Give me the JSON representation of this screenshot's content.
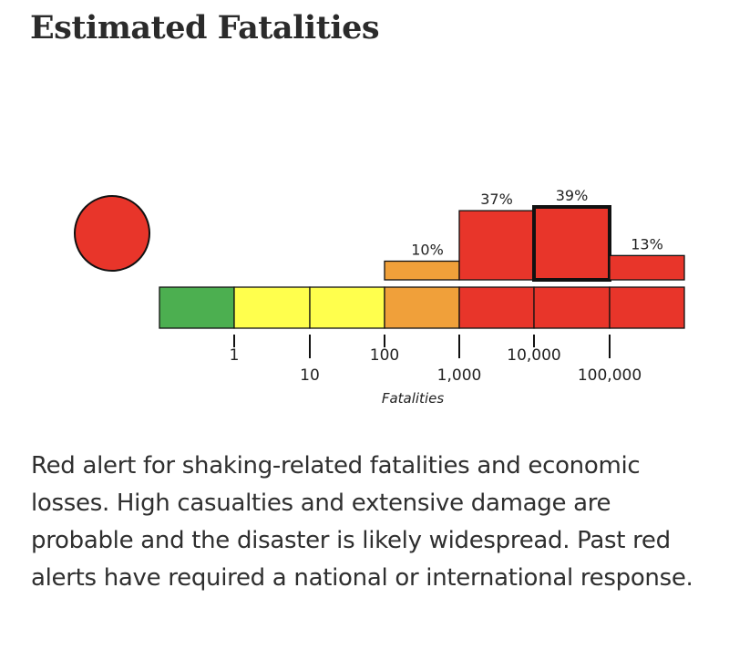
{
  "page": {
    "title": "Estimated Fatalities",
    "description": "Red alert for shaking-related fatalities and economic losses. High casualties and extensive damage are probable and the disaster is likely widespread. Past red alerts have required a national or international response."
  },
  "alert": {
    "level": "red",
    "color": "#e8352a"
  },
  "chart_data": {
    "type": "bar",
    "title": "",
    "xlabel": "Fatalities",
    "ylabel": "",
    "tick_labels": [
      "1",
      "10",
      "100",
      "1,000",
      "10,000",
      "100,000"
    ],
    "scale_bands": [
      {
        "color": "#4caf50"
      },
      {
        "color": "#ffff4d"
      },
      {
        "color": "#ffff4d"
      },
      {
        "color": "#f0a03a"
      },
      {
        "color": "#e8352a"
      },
      {
        "color": "#e8352a"
      },
      {
        "color": "#e8352a"
      }
    ],
    "probabilities": [
      {
        "range": "100-1,000",
        "value": 10,
        "label": "10%",
        "color": "#f0a03a",
        "highlight": false
      },
      {
        "range": "1,000-10,000",
        "value": 37,
        "label": "37%",
        "color": "#e8352a",
        "highlight": false
      },
      {
        "range": "10,000-100,000",
        "value": 39,
        "label": "39%",
        "color": "#e8352a",
        "highlight": true
      },
      {
        "range": "100,000+",
        "value": 13,
        "label": "13%",
        "color": "#e8352a",
        "highlight": false
      }
    ],
    "ylim": [
      0,
      39
    ]
  }
}
